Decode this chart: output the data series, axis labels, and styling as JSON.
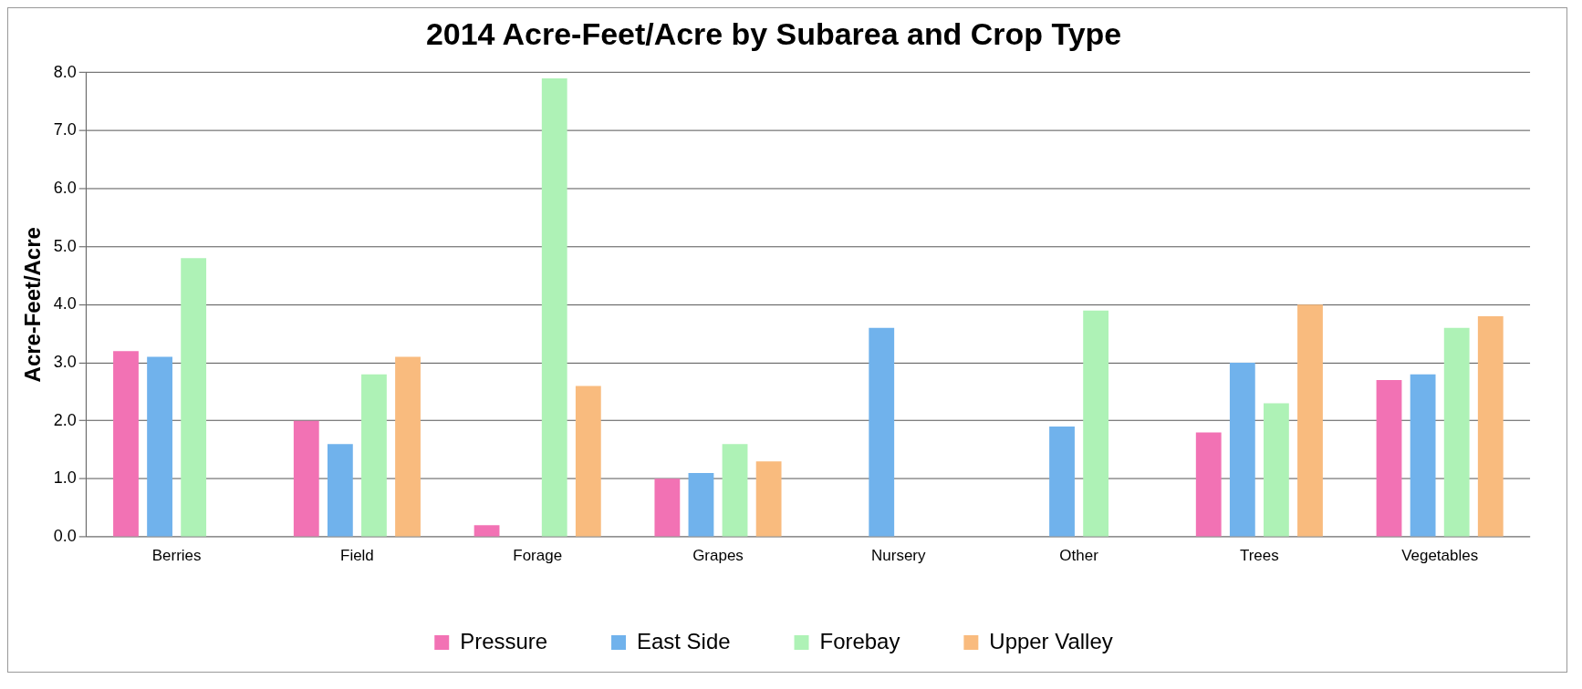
{
  "chart_data": {
    "type": "bar",
    "title": "2014 Acre-Feet/Acre by Subarea and Crop Type",
    "ylabel": "Acre-Feet/Acre",
    "categories": [
      "Berries",
      "Field",
      "Forage",
      "Grapes",
      "Nursery",
      "Other",
      "Trees",
      "Vegetables"
    ],
    "series": [
      {
        "name": "Pressure",
        "color": "#f272b4",
        "values": [
          3.2,
          2.0,
          0.2,
          1.0,
          0,
          0,
          1.8,
          2.7
        ]
      },
      {
        "name": "East Side",
        "color": "#70b2ec",
        "values": [
          3.1,
          1.6,
          0,
          1.1,
          3.6,
          1.9,
          3.0,
          2.8
        ]
      },
      {
        "name": "Forebay",
        "color": "#aef2b6",
        "values": [
          4.8,
          2.8,
          7.9,
          1.6,
          0,
          3.9,
          2.3,
          3.6
        ]
      },
      {
        "name": "Upper Valley",
        "color": "#f9bb7e",
        "values": [
          0,
          3.1,
          2.6,
          1.3,
          0,
          0,
          4.0,
          3.8
        ]
      }
    ],
    "ylim": [
      0,
      8
    ],
    "yticks": [
      {
        "value": 0,
        "label": "0.0"
      },
      {
        "value": 1,
        "label": "1.0"
      },
      {
        "value": 2,
        "label": "2.0"
      },
      {
        "value": 3,
        "label": "3.0"
      },
      {
        "value": 4,
        "label": "4.0"
      },
      {
        "value": 5,
        "label": "5.0"
      },
      {
        "value": 6,
        "label": "6.0"
      },
      {
        "value": 7,
        "label": "7.0"
      },
      {
        "value": 8,
        "label": "8.0"
      }
    ],
    "grid": "y",
    "legend": "bottom"
  }
}
